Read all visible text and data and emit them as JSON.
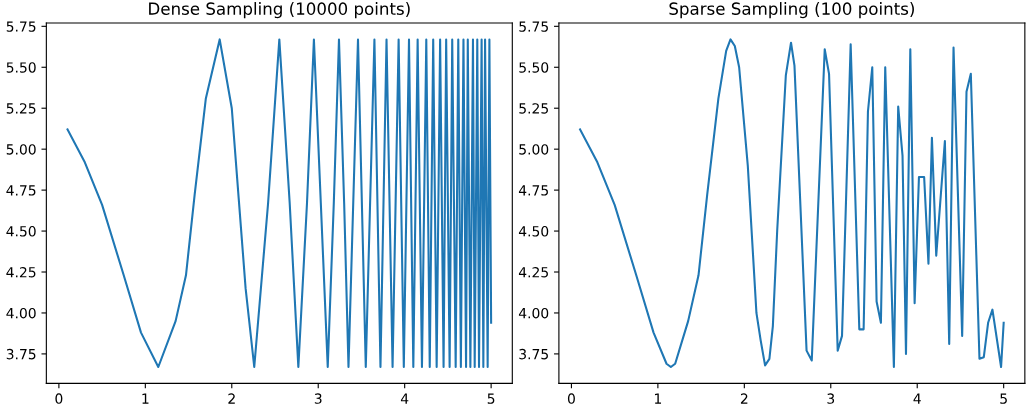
{
  "chart_data": [
    {
      "type": "line",
      "title": "Dense Sampling (10000 points)",
      "x": [
        0.1,
        0.3,
        0.5,
        0.75,
        0.95,
        1.15,
        1.35,
        1.47,
        1.57,
        1.7,
        1.86,
        2.0,
        2.08,
        2.16,
        2.26,
        2.42,
        2.55,
        2.67,
        2.77,
        2.87,
        2.95,
        3.03,
        3.11,
        3.18,
        3.24,
        3.3,
        3.35,
        3.46,
        3.55,
        3.65,
        3.72,
        3.79,
        3.86,
        3.93,
        3.99,
        4.05,
        4.1,
        4.15,
        4.2,
        4.25,
        4.29,
        4.33,
        4.37,
        4.41,
        4.45,
        4.48,
        4.52,
        4.55,
        4.59,
        4.62,
        4.65,
        4.68,
        4.71,
        4.73,
        4.76,
        4.79,
        4.81,
        4.84,
        4.86,
        4.89,
        4.91,
        4.93,
        4.96,
        4.98,
        5.0
      ],
      "series": [
        {
          "color": "#1f77b4",
          "values": [
            5.12,
            4.92,
            4.66,
            4.23,
            3.88,
            3.67,
            3.95,
            4.23,
            4.72,
            5.31,
            5.67,
            5.25,
            4.7,
            4.15,
            3.67,
            4.67,
            5.67,
            4.67,
            3.67,
            4.67,
            5.67,
            4.67,
            3.67,
            4.67,
            5.67,
            4.67,
            3.67,
            5.67,
            3.67,
            5.67,
            3.67,
            5.67,
            3.67,
            5.67,
            3.67,
            5.67,
            3.67,
            5.67,
            3.67,
            5.67,
            3.67,
            5.67,
            3.67,
            5.67,
            3.67,
            5.67,
            3.67,
            5.67,
            3.67,
            5.67,
            3.67,
            5.67,
            3.67,
            5.67,
            3.67,
            5.67,
            3.67,
            5.67,
            3.67,
            5.67,
            3.67,
            5.67,
            3.67,
            5.67,
            3.94
          ]
        }
      ],
      "xlim": [
        -0.145,
        5.245
      ],
      "ylim": [
        3.57,
        5.77
      ],
      "xticks": [
        0,
        1,
        2,
        3,
        4,
        5
      ],
      "yticks": [
        {
          "value": 3.75,
          "label": "3.75"
        },
        {
          "value": 4.0,
          "label": "4.00"
        },
        {
          "value": 4.25,
          "label": "4.25"
        },
        {
          "value": 4.5,
          "label": "4.50"
        },
        {
          "value": 4.75,
          "label": "4.75"
        },
        {
          "value": 5.0,
          "label": "5.00"
        },
        {
          "value": 5.25,
          "label": "5.25"
        },
        {
          "value": 5.5,
          "label": "5.50"
        },
        {
          "value": 5.75,
          "label": "5.75"
        }
      ],
      "grid": false,
      "legend": false,
      "marker": "none",
      "line_style": "solid"
    },
    {
      "type": "line",
      "title": "Sparse Sampling (100 points)",
      "x": [
        0.1,
        0.3,
        0.5,
        0.75,
        0.95,
        1.1,
        1.15,
        1.2,
        1.35,
        1.47,
        1.57,
        1.7,
        1.79,
        1.84,
        1.89,
        1.94,
        2.04,
        2.14,
        2.19,
        2.24,
        2.29,
        2.33,
        2.38,
        2.48,
        2.54,
        2.58,
        2.72,
        2.78,
        2.93,
        2.98,
        3.08,
        3.13,
        3.23,
        3.33,
        3.38,
        3.43,
        3.48,
        3.53,
        3.58,
        3.63,
        3.73,
        3.78,
        3.83,
        3.87,
        3.92,
        3.97,
        4.02,
        4.08,
        4.13,
        4.17,
        4.22,
        4.32,
        4.37,
        4.42,
        4.52,
        4.57,
        4.62,
        4.72,
        4.77,
        4.82,
        4.87,
        4.97,
        5.0
      ],
      "series": [
        {
          "color": "#1f77b4",
          "values": [
            5.12,
            4.92,
            4.66,
            4.23,
            3.88,
            3.69,
            3.67,
            3.69,
            3.95,
            4.23,
            4.72,
            5.31,
            5.6,
            5.67,
            5.63,
            5.5,
            4.9,
            4.0,
            3.83,
            3.68,
            3.72,
            3.92,
            4.5,
            5.45,
            5.65,
            5.51,
            3.77,
            3.71,
            5.61,
            5.46,
            3.77,
            3.86,
            5.64,
            3.9,
            3.9,
            5.23,
            5.5,
            4.07,
            3.94,
            5.5,
            3.67,
            5.26,
            4.96,
            3.75,
            5.61,
            4.06,
            4.83,
            4.83,
            4.3,
            5.07,
            4.35,
            5.05,
            3.81,
            5.62,
            3.86,
            5.35,
            5.46,
            3.72,
            3.73,
            3.94,
            4.02,
            3.67,
            3.94
          ]
        }
      ],
      "xlim": [
        -0.145,
        5.245
      ],
      "ylim": [
        3.57,
        5.77
      ],
      "xticks": [
        0,
        1,
        2,
        3,
        4,
        5
      ],
      "yticks": [
        {
          "value": 3.75,
          "label": "3.75"
        },
        {
          "value": 4.0,
          "label": "4.00"
        },
        {
          "value": 4.25,
          "label": "4.25"
        },
        {
          "value": 4.5,
          "label": "4.50"
        },
        {
          "value": 4.75,
          "label": "4.75"
        },
        {
          "value": 5.0,
          "label": "5.00"
        },
        {
          "value": 5.25,
          "label": "5.25"
        },
        {
          "value": 5.5,
          "label": "5.50"
        },
        {
          "value": 5.75,
          "label": "5.75"
        }
      ],
      "grid": false,
      "legend": false,
      "marker": "none",
      "line_style": "solid"
    }
  ]
}
